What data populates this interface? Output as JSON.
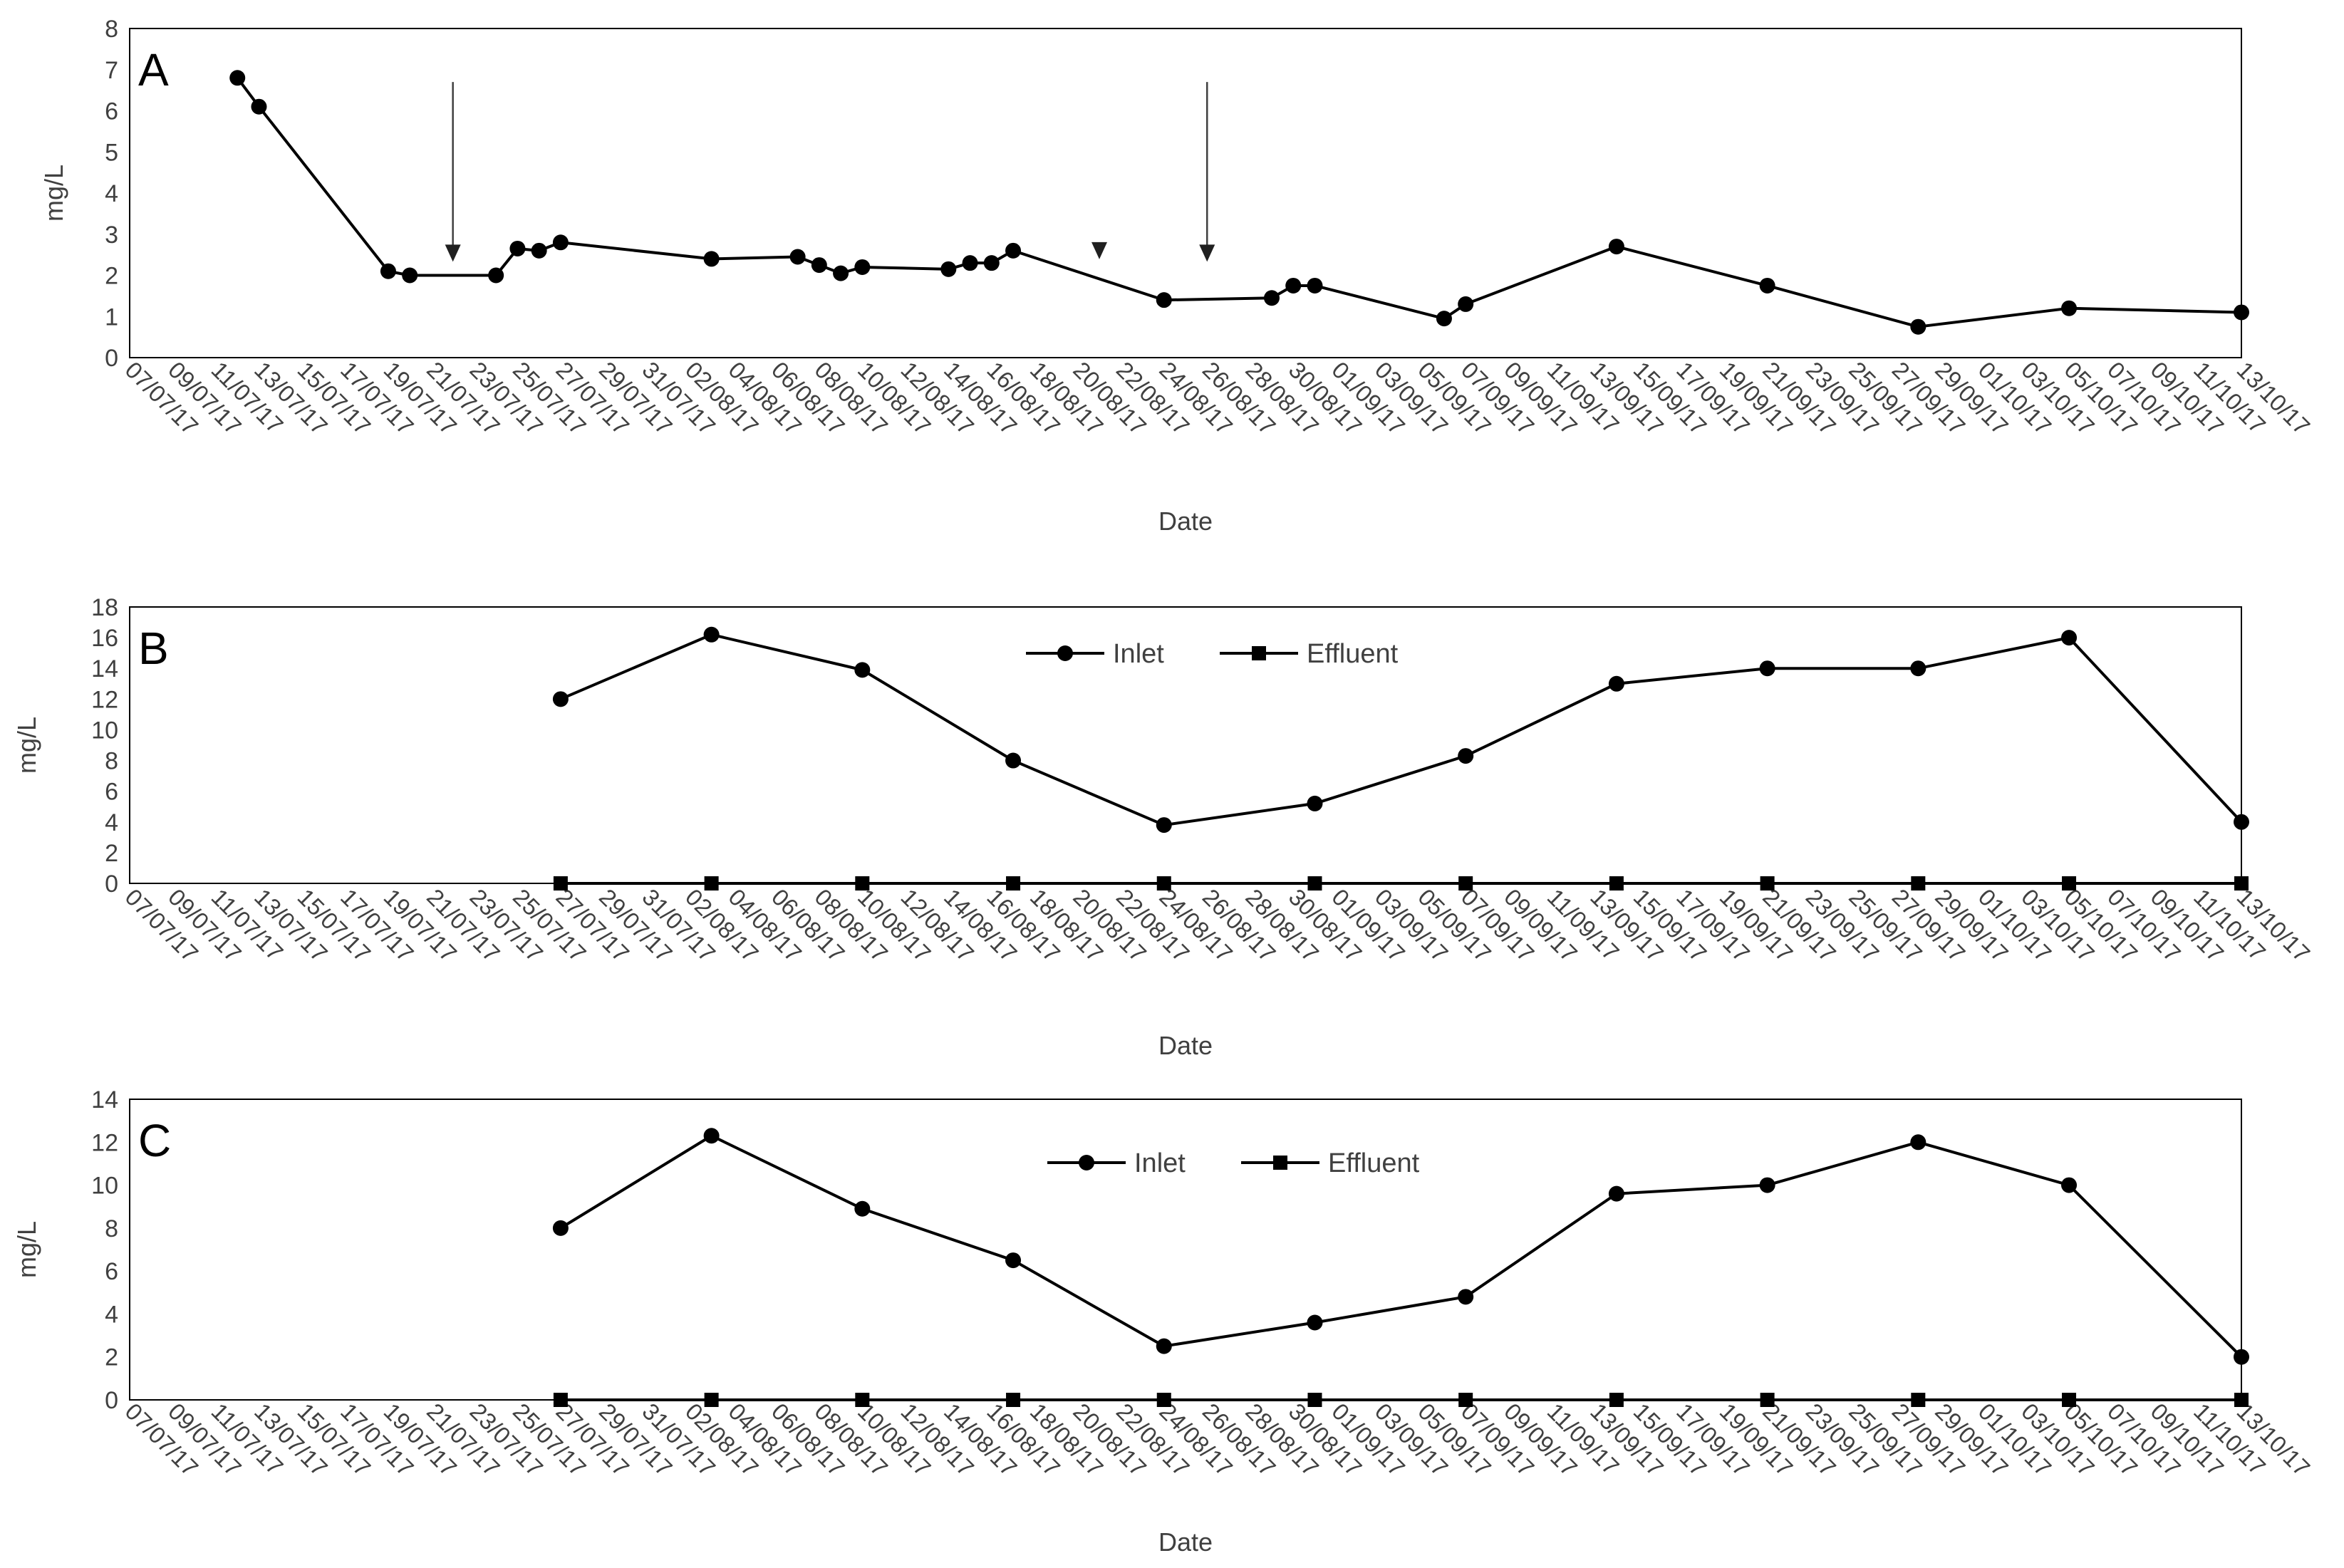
{
  "chart_data": [
    {
      "type": "line",
      "panel_label": "A",
      "title": "",
      "xlabel": "Date",
      "ylabel": "mg/L",
      "ylim": [
        0,
        8
      ],
      "yticks": [
        0,
        1,
        2,
        3,
        4,
        5,
        6,
        7,
        8
      ],
      "x_tick_labels": [
        "07/07/17",
        "09/07/17",
        "11/07/17",
        "13/07/17",
        "15/07/17",
        "17/07/17",
        "19/07/17",
        "21/07/17",
        "23/07/17",
        "25/07/17",
        "27/07/17",
        "29/07/17",
        "31/07/17",
        "02/08/17",
        "04/08/17",
        "06/08/17",
        "08/08/17",
        "10/08/17",
        "12/08/17",
        "14/08/17",
        "16/08/17",
        "18/08/17",
        "20/08/17",
        "22/08/17",
        "24/08/17",
        "26/08/17",
        "28/08/17",
        "30/08/17",
        "01/09/17",
        "03/09/17",
        "05/09/17",
        "07/09/17",
        "09/09/17",
        "11/09/17",
        "13/09/17",
        "15/09/17",
        "17/09/17",
        "19/09/17",
        "21/09/17",
        "23/09/17",
        "25/09/17",
        "27/09/17",
        "29/09/17",
        "01/10/17",
        "03/10/17",
        "05/10/17",
        "07/10/17",
        "09/10/17",
        "11/10/17",
        "13/10/17"
      ],
      "legend": null,
      "series": [
        {
          "name": "",
          "marker": "circle",
          "points": [
            {
              "x": "12/07/17",
              "y": 6.8
            },
            {
              "x": "13/07/17",
              "y": 6.1
            },
            {
              "x": "19/07/17",
              "y": 2.1
            },
            {
              "x": "20/07/17",
              "y": 2.0
            },
            {
              "x": "24/07/17",
              "y": 2.0
            },
            {
              "x": "25/07/17",
              "y": 2.65
            },
            {
              "x": "26/07/17",
              "y": 2.6
            },
            {
              "x": "27/07/17",
              "y": 2.8
            },
            {
              "x": "03/08/17",
              "y": 2.4
            },
            {
              "x": "07/08/17",
              "y": 2.45
            },
            {
              "x": "08/08/17",
              "y": 2.25
            },
            {
              "x": "09/08/17",
              "y": 2.05
            },
            {
              "x": "10/08/17",
              "y": 2.2
            },
            {
              "x": "14/08/17",
              "y": 2.15
            },
            {
              "x": "15/08/17",
              "y": 2.3
            },
            {
              "x": "16/08/17",
              "y": 2.3
            },
            {
              "x": "17/08/17",
              "y": 2.6
            },
            {
              "x": "24/08/17",
              "y": 1.4
            },
            {
              "x": "29/08/17",
              "y": 1.45
            },
            {
              "x": "30/08/17",
              "y": 1.75
            },
            {
              "x": "31/08/17",
              "y": 1.75
            },
            {
              "x": "06/09/17",
              "y": 0.95
            },
            {
              "x": "07/09/17",
              "y": 1.3
            },
            {
              "x": "14/09/17",
              "y": 2.7
            },
            {
              "x": "21/09/17",
              "y": 1.75
            },
            {
              "x": "28/09/17",
              "y": 0.75
            },
            {
              "x": "05/10/17",
              "y": 1.2
            },
            {
              "x": "13/10/17",
              "y": 1.1
            }
          ]
        }
      ],
      "annotations": [
        {
          "type": "arrow",
          "x": "22/07/17",
          "y_from": 6.7,
          "y_to": 2.4
        },
        {
          "type": "triangle-marker",
          "x": "21/08/17",
          "y": 2.6
        },
        {
          "type": "arrow",
          "x": "26/08/17",
          "y_from": 6.7,
          "y_to": 2.4
        }
      ]
    },
    {
      "type": "line",
      "panel_label": "B",
      "title": "",
      "xlabel": "Date",
      "ylabel": "mg/L",
      "ylim": [
        0,
        18
      ],
      "yticks": [
        0,
        2,
        4,
        6,
        8,
        10,
        12,
        14,
        16,
        18
      ],
      "x_tick_labels": [
        "07/07/17",
        "09/07/17",
        "11/07/17",
        "13/07/17",
        "15/07/17",
        "17/07/17",
        "19/07/17",
        "21/07/17",
        "23/07/17",
        "25/07/17",
        "27/07/17",
        "29/07/17",
        "31/07/17",
        "02/08/17",
        "04/08/17",
        "06/08/17",
        "08/08/17",
        "10/08/17",
        "12/08/17",
        "14/08/17",
        "16/08/17",
        "18/08/17",
        "20/08/17",
        "22/08/17",
        "24/08/17",
        "26/08/17",
        "28/08/17",
        "30/08/17",
        "01/09/17",
        "03/09/17",
        "05/09/17",
        "07/09/17",
        "09/09/17",
        "11/09/17",
        "13/09/17",
        "15/09/17",
        "17/09/17",
        "19/09/17",
        "21/09/17",
        "23/09/17",
        "25/09/17",
        "27/09/17",
        "29/09/17",
        "01/10/17",
        "03/10/17",
        "05/10/17",
        "07/10/17",
        "09/10/17",
        "11/10/17",
        "13/10/17"
      ],
      "legend": {
        "position": "top-center",
        "entries": [
          "Inlet",
          "Effluent"
        ]
      },
      "series": [
        {
          "name": "Inlet",
          "marker": "circle",
          "points": [
            {
              "x": "27/07/17",
              "y": 12
            },
            {
              "x": "03/08/17",
              "y": 16.2
            },
            {
              "x": "10/08/17",
              "y": 13.9
            },
            {
              "x": "17/08/17",
              "y": 8
            },
            {
              "x": "24/08/17",
              "y": 3.8
            },
            {
              "x": "31/08/17",
              "y": 5.2
            },
            {
              "x": "07/09/17",
              "y": 8.3
            },
            {
              "x": "14/09/17",
              "y": 13
            },
            {
              "x": "21/09/17",
              "y": 14
            },
            {
              "x": "28/09/17",
              "y": 14
            },
            {
              "x": "05/10/17",
              "y": 16
            },
            {
              "x": "13/10/17",
              "y": 4
            }
          ]
        },
        {
          "name": "Effluent",
          "marker": "square",
          "points": [
            {
              "x": "27/07/17",
              "y": 0
            },
            {
              "x": "03/08/17",
              "y": 0
            },
            {
              "x": "10/08/17",
              "y": 0
            },
            {
              "x": "17/08/17",
              "y": 0
            },
            {
              "x": "24/08/17",
              "y": 0
            },
            {
              "x": "31/08/17",
              "y": 0
            },
            {
              "x": "07/09/17",
              "y": 0
            },
            {
              "x": "14/09/17",
              "y": 0
            },
            {
              "x": "21/09/17",
              "y": 0
            },
            {
              "x": "28/09/17",
              "y": 0
            },
            {
              "x": "05/10/17",
              "y": 0
            },
            {
              "x": "13/10/17",
              "y": 0
            }
          ]
        }
      ]
    },
    {
      "type": "line",
      "panel_label": "C",
      "title": "",
      "xlabel": "Date",
      "ylabel": "mg/L",
      "ylim": [
        0,
        14
      ],
      "yticks": [
        0,
        2,
        4,
        6,
        8,
        10,
        12,
        14
      ],
      "x_tick_labels": [
        "07/07/17",
        "09/07/17",
        "11/07/17",
        "13/07/17",
        "15/07/17",
        "17/07/17",
        "19/07/17",
        "21/07/17",
        "23/07/17",
        "25/07/17",
        "27/07/17",
        "29/07/17",
        "31/07/17",
        "02/08/17",
        "04/08/17",
        "06/08/17",
        "08/08/17",
        "10/08/17",
        "12/08/17",
        "14/08/17",
        "16/08/17",
        "18/08/17",
        "20/08/17",
        "22/08/17",
        "24/08/17",
        "26/08/17",
        "28/08/17",
        "30/08/17",
        "01/09/17",
        "03/09/17",
        "05/09/17",
        "07/09/17",
        "09/09/17",
        "11/09/17",
        "13/09/17",
        "15/09/17",
        "17/09/17",
        "19/09/17",
        "21/09/17",
        "23/09/17",
        "25/09/17",
        "27/09/17",
        "29/09/17",
        "01/10/17",
        "03/10/17",
        "05/10/17",
        "07/10/17",
        "09/10/17",
        "11/10/17",
        "13/10/17"
      ],
      "legend": {
        "position": "top-center",
        "entries": [
          "Inlet",
          "Effluent"
        ]
      },
      "series": [
        {
          "name": "Inlet",
          "marker": "circle",
          "points": [
            {
              "x": "27/07/17",
              "y": 8
            },
            {
              "x": "03/08/17",
              "y": 12.3
            },
            {
              "x": "10/08/17",
              "y": 8.9
            },
            {
              "x": "17/08/17",
              "y": 6.5
            },
            {
              "x": "24/08/17",
              "y": 2.5
            },
            {
              "x": "31/08/17",
              "y": 3.6
            },
            {
              "x": "07/09/17",
              "y": 4.8
            },
            {
              "x": "14/09/17",
              "y": 9.6
            },
            {
              "x": "21/09/17",
              "y": 10
            },
            {
              "x": "28/09/17",
              "y": 12
            },
            {
              "x": "05/10/17",
              "y": 10
            },
            {
              "x": "13/10/17",
              "y": 2
            }
          ]
        },
        {
          "name": "Effluent",
          "marker": "square",
          "points": [
            {
              "x": "27/07/17",
              "y": 0
            },
            {
              "x": "03/08/17",
              "y": 0
            },
            {
              "x": "10/08/17",
              "y": 0
            },
            {
              "x": "17/08/17",
              "y": 0
            },
            {
              "x": "24/08/17",
              "y": 0
            },
            {
              "x": "31/08/17",
              "y": 0
            },
            {
              "x": "07/09/17",
              "y": 0
            },
            {
              "x": "14/09/17",
              "y": 0
            },
            {
              "x": "21/09/17",
              "y": 0
            },
            {
              "x": "28/09/17",
              "y": 0
            },
            {
              "x": "05/10/17",
              "y": 0
            },
            {
              "x": "13/10/17",
              "y": 0
            }
          ]
        }
      ]
    }
  ]
}
